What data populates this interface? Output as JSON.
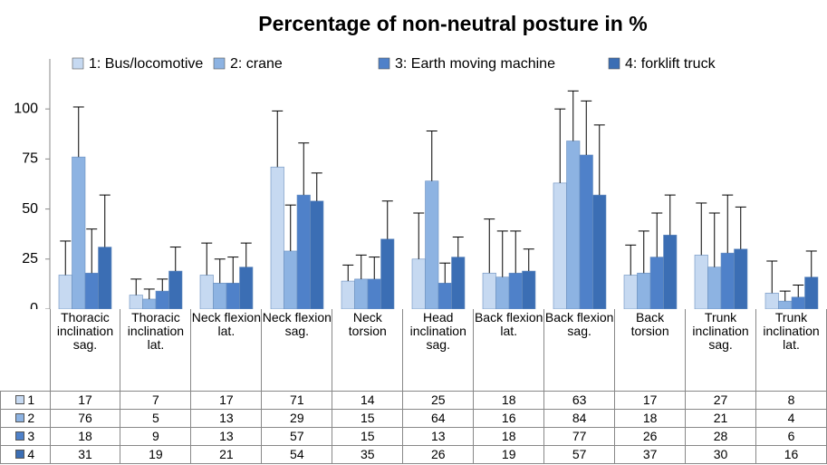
{
  "chart_data": {
    "type": "bar",
    "title": "Percentage of non-neutral posture in %",
    "categories": [
      "Thoracic inclination sag.",
      "Thoracic inclination lat.",
      "Neck flexion lat.",
      "Neck flexion sag.",
      "Neck torsion",
      "Head inclination sag.",
      "Back flexion lat.",
      "Back flexion sag.",
      "Back torsion",
      "Trunk inclination sag.",
      "Trunk inclination lat."
    ],
    "series": [
      {
        "name": "1: Bus/locomotive",
        "short_name": "1",
        "color": "#c6d9f1",
        "values": [
          17,
          7,
          17,
          71,
          14,
          25,
          18,
          63,
          17,
          27,
          8
        ],
        "errors": [
          17,
          8,
          16,
          28,
          8,
          23,
          27,
          37,
          15,
          26,
          16
        ]
      },
      {
        "name": "2: crane",
        "short_name": "2",
        "color": "#8db3e2",
        "values": [
          76,
          5,
          13,
          29,
          15,
          64,
          16,
          84,
          18,
          21,
          4
        ],
        "errors": [
          25,
          5,
          12,
          23,
          12,
          25,
          23,
          25,
          21,
          27,
          5
        ]
      },
      {
        "name": "3: Earth moving machine",
        "short_name": "3",
        "color": "#4f81c9",
        "values": [
          18,
          9,
          13,
          57,
          15,
          13,
          18,
          77,
          26,
          28,
          6
        ],
        "errors": [
          22,
          6,
          13,
          26,
          11,
          10,
          21,
          27,
          22,
          29,
          6
        ]
      },
      {
        "name": "4: forklift truck",
        "short_name": "4",
        "color": "#3b6eb4",
        "values": [
          31,
          19,
          21,
          54,
          35,
          26,
          19,
          57,
          37,
          30,
          16
        ],
        "errors": [
          26,
          12,
          12,
          14,
          19,
          10,
          11,
          35,
          20,
          21,
          13
        ]
      }
    ],
    "ylim": [
      0,
      125
    ],
    "yticks": [
      0,
      25,
      50,
      75,
      100
    ],
    "legend": "top"
  }
}
